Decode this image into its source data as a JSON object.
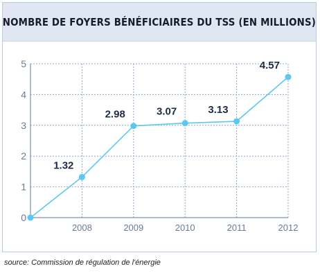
{
  "title": "NOMBRE DE FOYERS BÉNÉFICIAIRES DU TSS (EN MILLIONS)",
  "source": "source: Commission de régulation de l'énergie",
  "colors": {
    "line": "#5bc8f2",
    "grid": "#8fa6cc",
    "axis": "#7a90b8",
    "tick_text": "#6b7a99",
    "label_text": "#1f2a44",
    "header_bg": "#dfe7f3"
  },
  "chart_data": {
    "type": "line",
    "x": [
      2007,
      2008,
      2009,
      2010,
      2011,
      2012
    ],
    "x_tick_labels": [
      "",
      "2008",
      "2009",
      "2010",
      "2011",
      "2012"
    ],
    "values": [
      0,
      1.32,
      2.98,
      3.07,
      3.13,
      4.57
    ],
    "data_labels": [
      "",
      "1.32",
      "2.98",
      "3.07",
      "3.13",
      "4.57"
    ],
    "y_ticks": [
      0,
      1,
      2,
      3,
      4,
      5
    ],
    "ylim": [
      0,
      5
    ],
    "grid": true
  }
}
